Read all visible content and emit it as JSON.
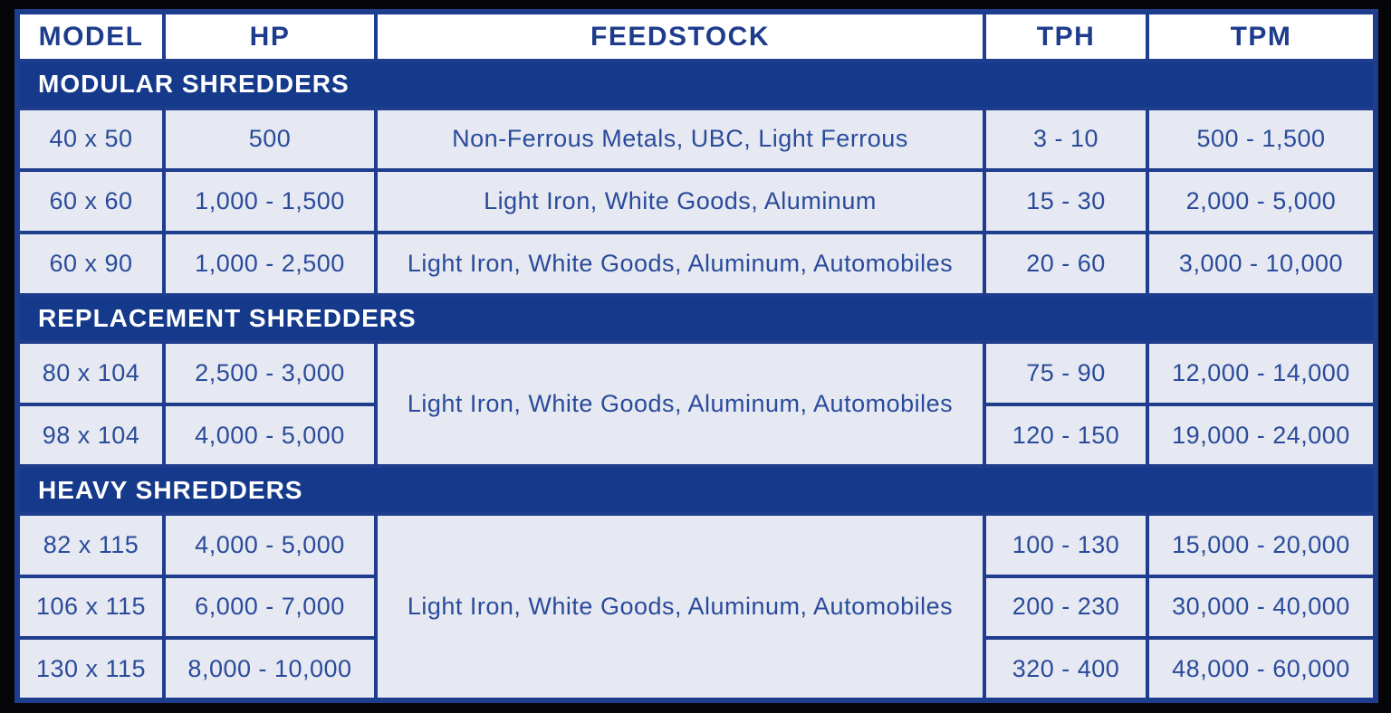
{
  "colors": {
    "frame_black": "#060608",
    "border_blue": "#1e3d8e",
    "band_blue": "#15398b",
    "cell_background": "#e6e9f2",
    "header_background": "#ffffff",
    "header_text": "#1e3c8c",
    "cell_text": "#2a4b9b",
    "band_text": "#ffffff"
  },
  "chart_data": {
    "type": "table",
    "columns": [
      "MODEL",
      "HP",
      "FEEDSTOCK",
      "TPH",
      "TPM"
    ],
    "sections": [
      {
        "title": "MODULAR SHREDDERS",
        "rows": [
          {
            "model": "40 x 50",
            "hp": "500",
            "feedstock": "Non-Ferrous Metals, UBC, Light Ferrous",
            "tph": "3 - 10",
            "tpm": "500 - 1,500"
          },
          {
            "model": "60 x 60",
            "hp": "1,000 - 1,500",
            "feedstock": "Light Iron, White Goods, Aluminum",
            "tph": "15 - 30",
            "tpm": "2,000 - 5,000"
          },
          {
            "model": "60 x 90",
            "hp": "1,000 - 2,500",
            "feedstock": "Light Iron, White Goods, Aluminum, Automobiles",
            "tph": "20 - 60",
            "tpm": "3,000 - 10,000"
          }
        ]
      },
      {
        "title": "REPLACEMENT SHREDDERS",
        "merged_feedstock": "Light Iron, White Goods, Aluminum, Automobiles",
        "rows": [
          {
            "model": "80 x 104",
            "hp": "2,500 - 3,000",
            "tph": "75 - 90",
            "tpm": "12,000 - 14,000"
          },
          {
            "model": "98 x 104",
            "hp": "4,000 - 5,000",
            "tph": "120 - 150",
            "tpm": "19,000 - 24,000"
          }
        ]
      },
      {
        "title": "HEAVY SHREDDERS",
        "merged_feedstock": "Light Iron, White Goods, Aluminum, Automobiles",
        "rows": [
          {
            "model": "82 x 115",
            "hp": "4,000 - 5,000",
            "tph": "100 - 130",
            "tpm": "15,000 - 20,000"
          },
          {
            "model": "106 x 115",
            "hp": "6,000 - 7,000",
            "tph": "200 - 230",
            "tpm": "30,000 - 40,000"
          },
          {
            "model": "130 x 115",
            "hp": "8,000 - 10,000",
            "tph": "320 - 400",
            "tpm": "48,000 - 60,000"
          }
        ]
      }
    ]
  }
}
